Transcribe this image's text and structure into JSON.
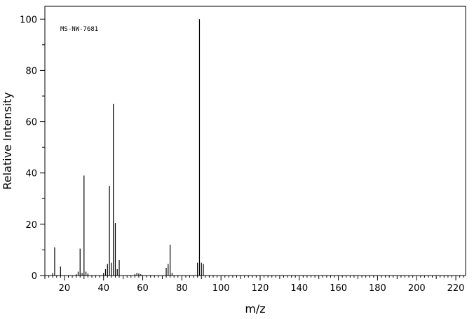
{
  "chart_data": {
    "type": "bar",
    "title": "",
    "annotation": "MS-NW-7681",
    "xlabel": "m/z",
    "ylabel": "Relative Intensity",
    "xlim": [
      10,
      225
    ],
    "ylim": [
      0,
      105
    ],
    "x_ticks": [
      20,
      40,
      60,
      80,
      100,
      120,
      140,
      160,
      180,
      200,
      220
    ],
    "y_ticks": [
      0,
      20,
      40,
      60,
      80,
      100
    ],
    "grid": false,
    "legend": "none",
    "peaks": [
      {
        "mz": 14,
        "intensity": 1.0
      },
      {
        "mz": 15,
        "intensity": 11.0
      },
      {
        "mz": 18,
        "intensity": 3.5
      },
      {
        "mz": 26,
        "intensity": 0.5
      },
      {
        "mz": 27,
        "intensity": 1.5
      },
      {
        "mz": 28,
        "intensity": 10.5
      },
      {
        "mz": 29,
        "intensity": 1.0
      },
      {
        "mz": 30,
        "intensity": 39.0
      },
      {
        "mz": 31,
        "intensity": 1.5
      },
      {
        "mz": 32,
        "intensity": 0.8
      },
      {
        "mz": 40,
        "intensity": 1.0
      },
      {
        "mz": 41,
        "intensity": 2.5
      },
      {
        "mz": 42,
        "intensity": 4.5
      },
      {
        "mz": 43,
        "intensity": 35.0
      },
      {
        "mz": 44,
        "intensity": 5.0
      },
      {
        "mz": 45,
        "intensity": 67.0
      },
      {
        "mz": 46,
        "intensity": 20.5
      },
      {
        "mz": 47,
        "intensity": 2.5
      },
      {
        "mz": 48,
        "intensity": 6.0
      },
      {
        "mz": 56,
        "intensity": 0.5
      },
      {
        "mz": 57,
        "intensity": 1.0
      },
      {
        "mz": 58,
        "intensity": 0.8
      },
      {
        "mz": 59,
        "intensity": 0.5
      },
      {
        "mz": 72,
        "intensity": 3.0
      },
      {
        "mz": 73,
        "intensity": 4.5
      },
      {
        "mz": 74,
        "intensity": 12.0
      },
      {
        "mz": 75,
        "intensity": 1.0
      },
      {
        "mz": 88,
        "intensity": 5.0
      },
      {
        "mz": 89,
        "intensity": 100.0
      },
      {
        "mz": 90,
        "intensity": 5.0
      },
      {
        "mz": 91,
        "intensity": 4.5
      }
    ]
  }
}
